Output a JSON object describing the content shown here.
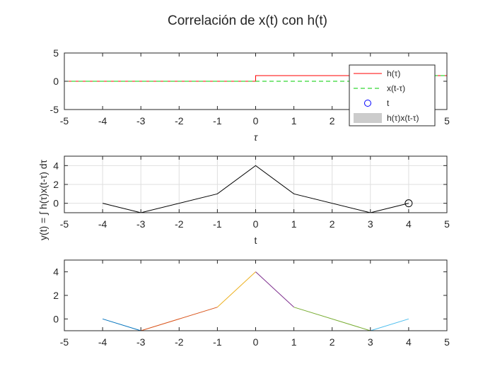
{
  "figure_title": "Correlación de x(t) con h(t)",
  "chart_data": [
    {
      "type": "line",
      "xlabel": "τ",
      "ylabel": "",
      "xlim": [
        -5,
        5
      ],
      "ylim": [
        -5,
        5
      ],
      "xticks": [
        -5,
        -4,
        -3,
        -2,
        -1,
        0,
        1,
        2,
        3,
        4,
        5
      ],
      "yticks": [
        -5,
        0,
        5
      ],
      "grid": false,
      "legend_position": "top-right",
      "series": [
        {
          "name": "h(τ)",
          "color": "#ff0000",
          "style": "solid",
          "x": [
            -5,
            0,
            0,
            5
          ],
          "y": [
            0,
            0,
            1,
            1
          ]
        },
        {
          "name": "x(t-τ)",
          "color": "#00cc00",
          "style": "dashed",
          "x": [
            -5,
            4,
            4,
            5
          ],
          "y": [
            0,
            0,
            1,
            1
          ]
        },
        {
          "name": "t",
          "color": "#0000ff",
          "style": "marker-circle",
          "x": [],
          "y": []
        },
        {
          "name": "h(τ)x(t-τ)",
          "color": "#cccccc",
          "style": "area",
          "x": [],
          "y": []
        }
      ]
    },
    {
      "type": "line",
      "xlabel": "t",
      "ylabel": "y(t) = ∫ h(τ)x(t-τ) dτ",
      "xlim": [
        -5,
        5
      ],
      "ylim": [
        -1,
        5
      ],
      "xticks": [
        -5,
        -4,
        -3,
        -2,
        -1,
        0,
        1,
        2,
        3,
        4,
        5
      ],
      "yticks": [
        0,
        2,
        4
      ],
      "grid": true,
      "series": [
        {
          "color": "#000000",
          "style": "solid",
          "x": [
            -4,
            -3,
            -1,
            0,
            1,
            3,
            4
          ],
          "y": [
            0,
            -1,
            1,
            4,
            1,
            -1,
            0
          ]
        }
      ],
      "marker": {
        "x": 4,
        "y": 0,
        "color": "#000000"
      }
    },
    {
      "type": "line",
      "xlabel": "",
      "ylabel": "",
      "xlim": [
        -5,
        5
      ],
      "ylim": [
        -1,
        5
      ],
      "xticks": [
        -5,
        -4,
        -3,
        -2,
        -1,
        0,
        1,
        2,
        3,
        4,
        5
      ],
      "yticks": [
        0,
        2,
        4
      ],
      "grid": false,
      "series": [
        {
          "color": "#0072bd",
          "style": "solid",
          "x": [
            -4,
            -3
          ],
          "y": [
            0,
            -1
          ]
        },
        {
          "color": "#d95319",
          "style": "solid",
          "x": [
            -3,
            -1
          ],
          "y": [
            -1,
            1
          ]
        },
        {
          "color": "#edb120",
          "style": "solid",
          "x": [
            -1,
            0
          ],
          "y": [
            1,
            4
          ]
        },
        {
          "color": "#7e2f8e",
          "style": "solid",
          "x": [
            0,
            1
          ],
          "y": [
            4,
            1
          ]
        },
        {
          "color": "#77ac30",
          "style": "solid",
          "x": [
            1,
            3
          ],
          "y": [
            1,
            -1
          ]
        },
        {
          "color": "#4dbeee",
          "style": "solid",
          "x": [
            3,
            4
          ],
          "y": [
            -1,
            0
          ]
        }
      ]
    }
  ]
}
